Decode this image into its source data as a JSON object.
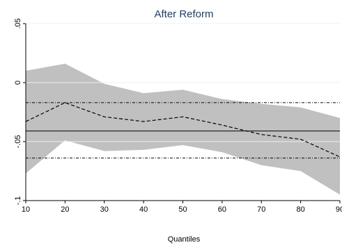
{
  "chart_data": {
    "type": "line",
    "title": "After Reform",
    "xlabel": "Quantiles",
    "ylabel": "",
    "x": [
      10,
      20,
      30,
      40,
      50,
      60,
      70,
      80,
      90
    ],
    "xticks": [
      10,
      20,
      30,
      40,
      50,
      60,
      70,
      80,
      90
    ],
    "xtick_labels": [
      "10",
      "20",
      "30",
      "40",
      "50",
      "60",
      "70",
      "80",
      "90"
    ],
    "yticks": [
      -0.1,
      -0.05,
      0,
      0.05
    ],
    "ytick_labels": [
      "-.1",
      "-.05",
      "0",
      ".05"
    ],
    "xlim": [
      10,
      90
    ],
    "ylim": [
      -0.1,
      0.05
    ],
    "series": [
      {
        "style": "dashed",
        "values": [
          -0.033,
          -0.017,
          -0.029,
          -0.033,
          -0.029,
          -0.036,
          -0.044,
          -0.048,
          -0.063
        ]
      }
    ],
    "confidence_band": {
      "lower": [
        -0.077,
        -0.049,
        -0.058,
        -0.057,
        -0.053,
        -0.059,
        -0.07,
        -0.075,
        -0.095
      ],
      "upper": [
        0.01,
        0.016,
        -0.001,
        -0.009,
        -0.006,
        -0.014,
        -0.018,
        -0.021,
        -0.03
      ],
      "color": "#c0c0c0"
    },
    "reference_lines": [
      {
        "style": "solid",
        "value": -0.041
      },
      {
        "style": "dashdot",
        "value": -0.017
      },
      {
        "style": "dashdot",
        "value": -0.064
      }
    ],
    "colors": {
      "title": "#1e3f66",
      "band": "#c0c0c0",
      "lines": "#000000"
    }
  }
}
